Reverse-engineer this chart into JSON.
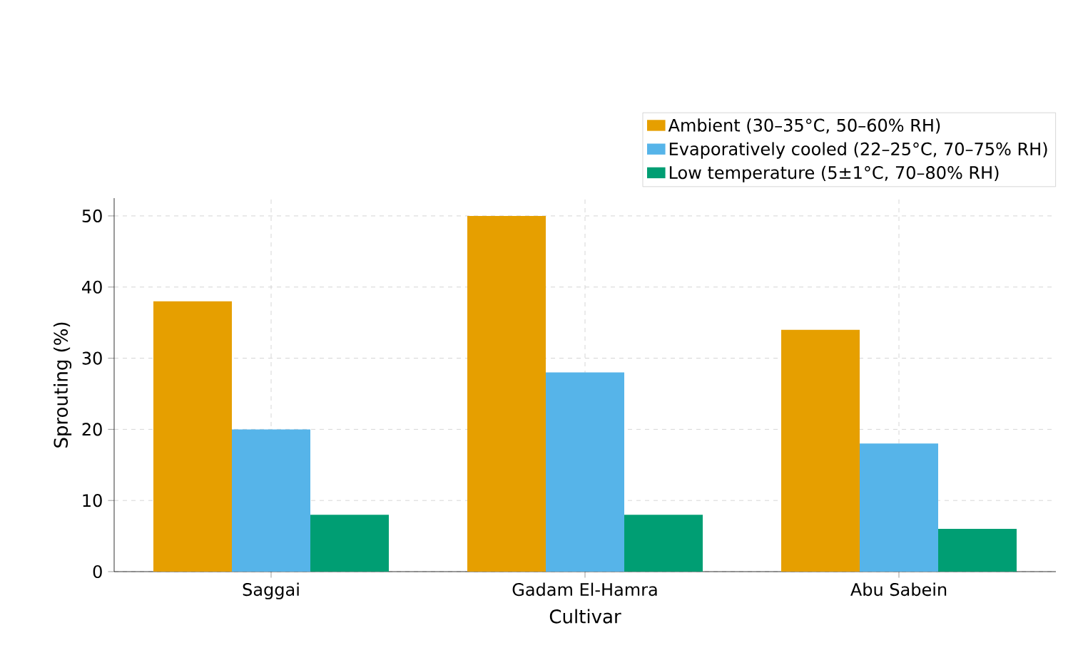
{
  "chart_data": {
    "type": "bar",
    "xlabel": "Cultivar",
    "ylabel": "Sprouting (%)",
    "categories": [
      "Saggai",
      "Gadam El-Hamra",
      "Abu Sabein"
    ],
    "series": [
      {
        "name": "Ambient (30–35°C, 50–60% RH)",
        "color": "#e69f00",
        "values": [
          38,
          50,
          34
        ]
      },
      {
        "name": "Evaporatively cooled (22–25°C, 70–75% RH)",
        "color": "#56b4e9",
        "values": [
          20,
          28,
          18
        ]
      },
      {
        "name": "Low temperature (5±1°C, 70–80% RH)",
        "color": "#009e73",
        "values": [
          8,
          8,
          6
        ]
      }
    ],
    "ylim": [
      0,
      52.5
    ],
    "yticks": [
      0,
      10,
      20,
      30,
      40,
      50
    ],
    "grid": true,
    "legend": "top right"
  }
}
